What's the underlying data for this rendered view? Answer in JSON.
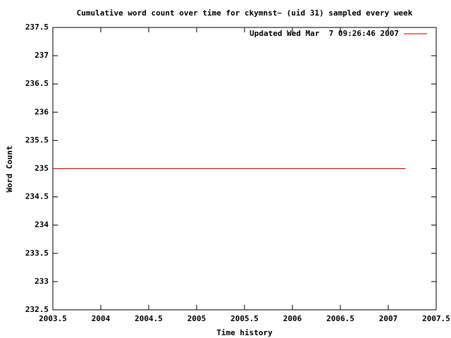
{
  "chart_data": {
    "type": "line",
    "title": "Cumulative word count over time for ckymnst~ (uid 31) sampled every week",
    "xlabel": "Time history",
    "ylabel": "Word Count",
    "x": [
      2003.5,
      2007.18
    ],
    "series": [
      {
        "name": "Updated Wed Mar  7 09:26:46 2007",
        "color": "#cc0000",
        "values": [
          235,
          235
        ]
      }
    ],
    "xlim": [
      2003.5,
      2007.5
    ],
    "xticks": [
      2003.5,
      2004,
      2004.5,
      2005,
      2005.5,
      2006,
      2006.5,
      2007,
      2007.5
    ],
    "ylim": [
      232.5,
      237.5
    ],
    "yticks": [
      232.5,
      233,
      233.5,
      234,
      234.5,
      235,
      235.5,
      236,
      236.5,
      237,
      237.5
    ],
    "legend": "top-right",
    "grid": false
  }
}
